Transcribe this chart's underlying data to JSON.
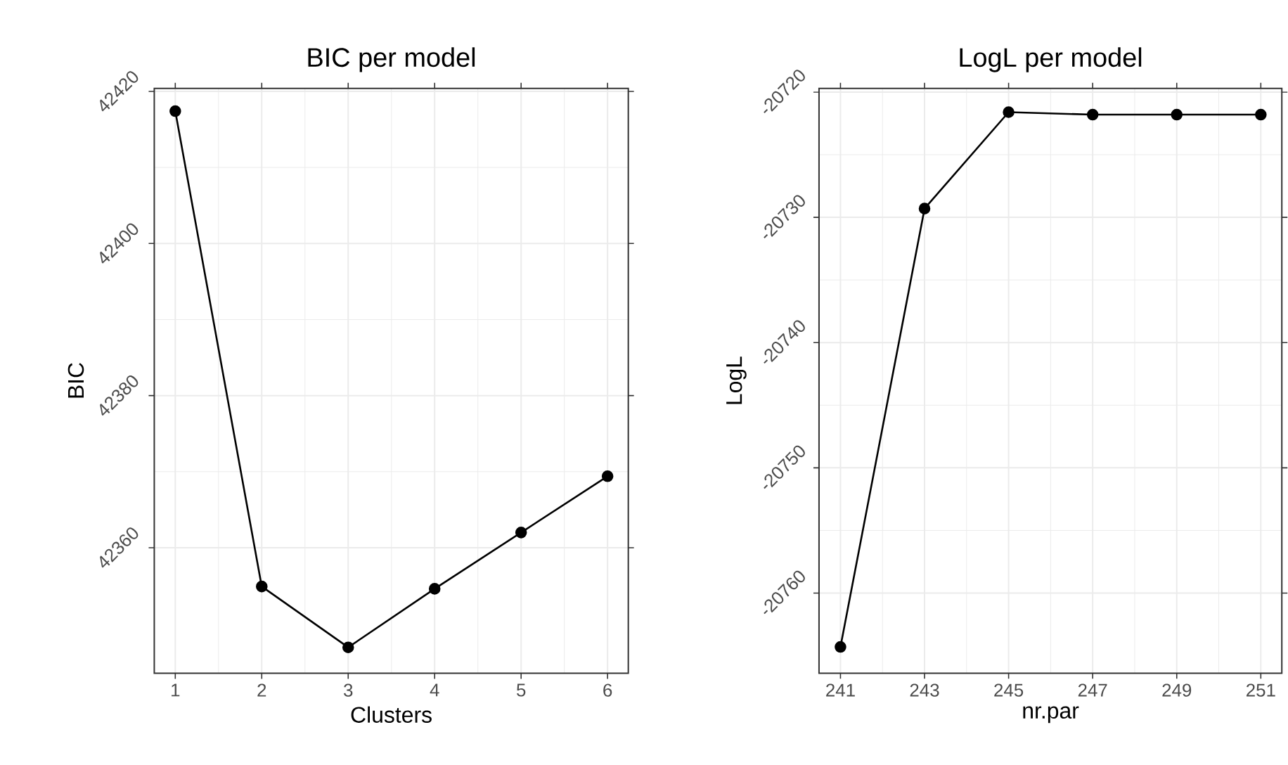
{
  "chart_data": [
    {
      "type": "line",
      "title": "BIC per model",
      "xlabel": "Clusters",
      "ylabel": "BIC",
      "x": [
        1,
        2,
        3,
        4,
        5,
        6
      ],
      "series": [
        {
          "color": "#000000",
          "values": [
            42417.4,
            42354.9,
            42346.9,
            42354.6,
            42362.0,
            42369.4
          ]
        }
      ],
      "xlim": [
        0.757,
        6.24
      ],
      "ylim": [
        42343.5,
        42420.4
      ],
      "xticks": [
        1,
        2,
        3,
        4,
        5,
        6
      ],
      "yticks": [
        42360,
        42380,
        42400,
        42420
      ],
      "grid": true,
      "marker": "circle",
      "line_style": "solid"
    },
    {
      "type": "line",
      "title": "LogL per model",
      "xlabel": "nr.par",
      "ylabel": "LogL",
      "x": [
        241,
        243,
        245,
        247,
        249,
        251
      ],
      "series": [
        {
          "color": "#000000",
          "values": [
            -20764.3,
            -20729.3,
            -20721.6,
            -20721.8,
            -20721.8,
            -20721.8
          ]
        }
      ],
      "xlim": [
        240.49,
        251.5
      ],
      "ylim": [
        -20766.4,
        -20719.7
      ],
      "xticks": [
        241,
        243,
        245,
        247,
        249,
        251
      ],
      "yticks": [
        -20760,
        -20750,
        -20740,
        -20730,
        -20720
      ],
      "grid": true,
      "marker": "circle",
      "line_style": "solid"
    }
  ]
}
